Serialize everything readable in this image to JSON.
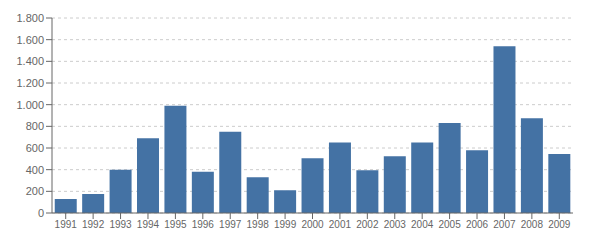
{
  "chart_data": {
    "type": "bar",
    "categories": [
      "1991",
      "1992",
      "1993",
      "1994",
      "1995",
      "1996",
      "1997",
      "1998",
      "1999",
      "2000",
      "2001",
      "2002",
      "2003",
      "2004",
      "2005",
      "2006",
      "2007",
      "2008",
      "2009"
    ],
    "values": [
      130,
      175,
      400,
      690,
      990,
      380,
      750,
      330,
      210,
      505,
      650,
      395,
      525,
      650,
      830,
      580,
      1540,
      875,
      545
    ],
    "color": "#4472a4",
    "ylim": [
      0,
      1800
    ],
    "yticks": [
      0,
      200,
      400,
      600,
      800,
      {
        "value": 1000,
        "label": "1.000"
      },
      {
        "value": 1200,
        "label": "1.200"
      },
      {
        "value": 1400,
        "label": "1.400"
      },
      {
        "value": 1600,
        "label": "1.600"
      },
      {
        "value": 1800,
        "label": "1.800"
      }
    ],
    "grid": true
  }
}
